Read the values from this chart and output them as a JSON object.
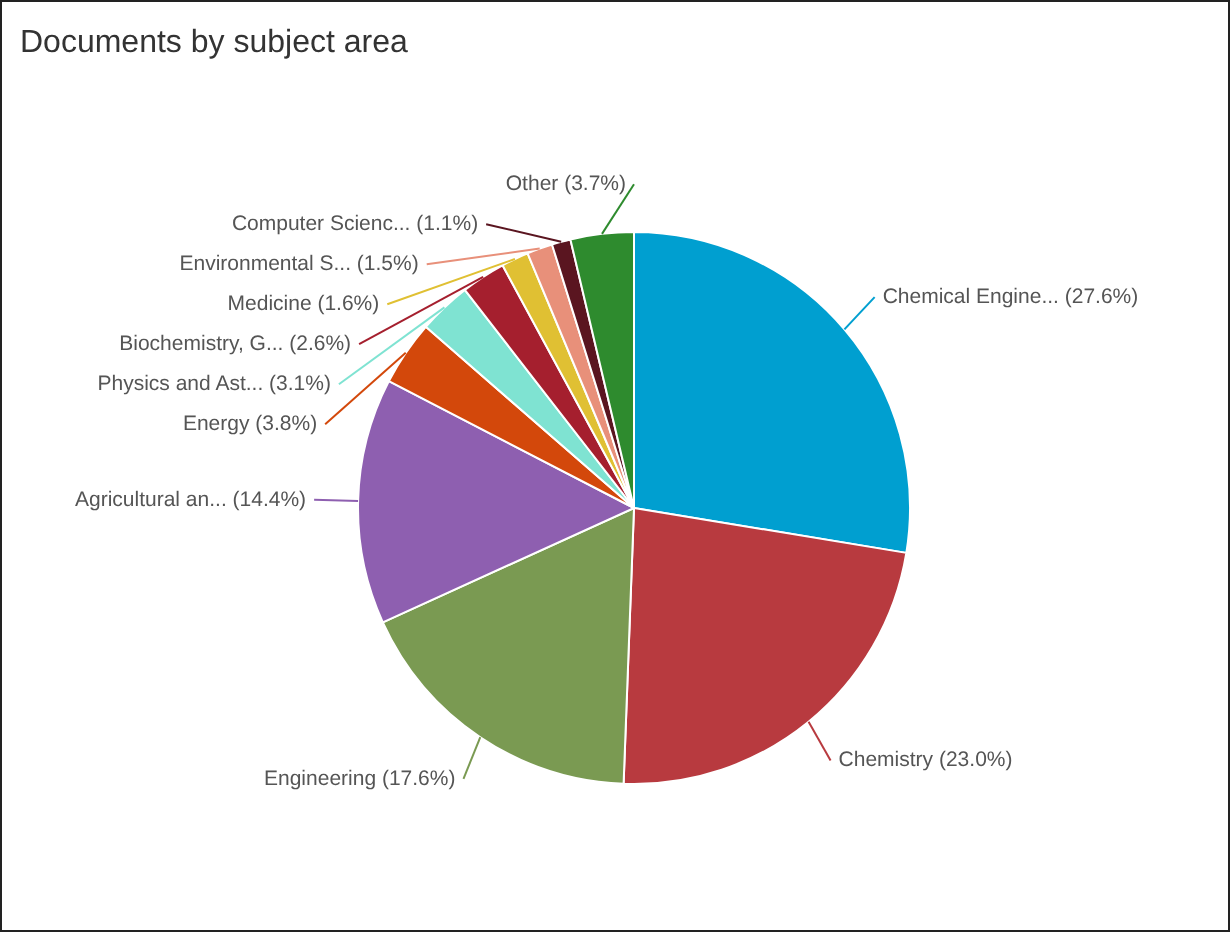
{
  "chart_data": {
    "type": "pie",
    "title": "Documents by subject area",
    "categories": [
      "Chemical Engine...",
      "Chemistry",
      "Engineering",
      "Agricultural an...",
      "Energy",
      "Physics and Ast...",
      "Biochemistry, G...",
      "Medicine",
      "Environmental S...",
      "Computer Scienc...",
      "Other"
    ],
    "values": [
      27.6,
      23.0,
      17.6,
      14.4,
      3.8,
      3.1,
      2.6,
      1.6,
      1.5,
      1.1,
      3.7
    ],
    "value_labels": [
      "(27.6%)",
      "(23.0%)",
      "(17.6%)",
      "(14.4%)",
      "(3.8%)",
      "(3.1%)",
      "(2.6%)",
      "(1.6%)",
      "(1.5%)",
      "(1.1%)",
      "(3.7%)"
    ],
    "colors": [
      "#009fd0",
      "#b83a3f",
      "#7a9a52",
      "#8e5fb0",
      "#d3480b",
      "#7fe3d2",
      "#a51f2e",
      "#e0c033",
      "#e8907a",
      "#5a1520",
      "#2e8b2e"
    ]
  }
}
